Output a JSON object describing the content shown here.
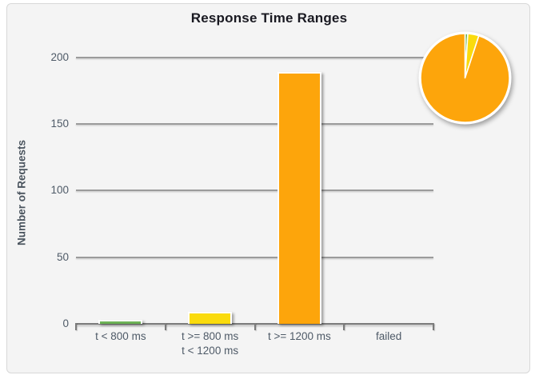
{
  "chart_data": {
    "type": "bar",
    "title": "Response Time Ranges",
    "ylabel": "Number of Requests",
    "xlabel": "",
    "categories": [
      "t < 800 ms",
      "t >= 800 ms\nt < 1200 ms",
      "t >= 1200 ms",
      "failed"
    ],
    "values": [
      2,
      8,
      188,
      0
    ],
    "colors": [
      "#6db356",
      "#fadb0c",
      "#fda50b"
    ],
    "yticks": [
      0,
      50,
      100,
      150,
      200
    ],
    "ylim": [
      0,
      200
    ],
    "grid": true,
    "legend": "none",
    "companion_pie": {
      "type": "pie",
      "values": [
        2,
        8,
        188,
        0
      ],
      "colors": [
        "#6db356",
        "#fadb0c",
        "#fda50b"
      ],
      "position": "top-right",
      "start_angle_deg": 0,
      "direction": "clockwise"
    }
  }
}
